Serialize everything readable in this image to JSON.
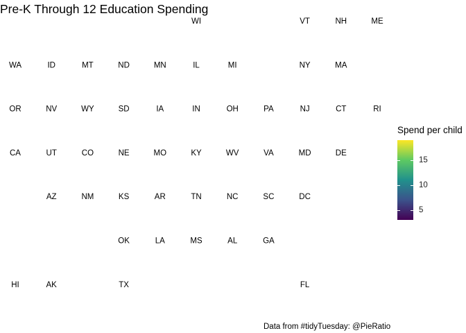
{
  "chart_data": {
    "type": "tile-map",
    "title": "Pre-K Through 12 Education Spending",
    "caption": "Data from #tidyTuesday: @PieRatio",
    "legend": {
      "title": "Spend per child",
      "position": "right",
      "palette": "viridis",
      "ticks": [
        "5",
        "10",
        "15"
      ],
      "tick_values": [
        5,
        10,
        15
      ],
      "range": [
        3,
        19
      ]
    },
    "grid": false,
    "tiles": [
      {
        "state": "WI",
        "row": 0,
        "col": 5
      },
      {
        "state": "VT",
        "row": 0,
        "col": 8
      },
      {
        "state": "NH",
        "row": 0,
        "col": 9
      },
      {
        "state": "ME",
        "row": 0,
        "col": 10
      },
      {
        "state": "WA",
        "row": 1,
        "col": 0
      },
      {
        "state": "ID",
        "row": 1,
        "col": 1
      },
      {
        "state": "MT",
        "row": 1,
        "col": 2
      },
      {
        "state": "ND",
        "row": 1,
        "col": 3
      },
      {
        "state": "MN",
        "row": 1,
        "col": 4
      },
      {
        "state": "IL",
        "row": 1,
        "col": 5
      },
      {
        "state": "MI",
        "row": 1,
        "col": 6
      },
      {
        "state": "NY",
        "row": 1,
        "col": 8
      },
      {
        "state": "MA",
        "row": 1,
        "col": 9
      },
      {
        "state": "OR",
        "row": 2,
        "col": 0
      },
      {
        "state": "NV",
        "row": 2,
        "col": 1
      },
      {
        "state": "WY",
        "row": 2,
        "col": 2
      },
      {
        "state": "SD",
        "row": 2,
        "col": 3
      },
      {
        "state": "IA",
        "row": 2,
        "col": 4
      },
      {
        "state": "IN",
        "row": 2,
        "col": 5
      },
      {
        "state": "OH",
        "row": 2,
        "col": 6
      },
      {
        "state": "PA",
        "row": 2,
        "col": 7
      },
      {
        "state": "NJ",
        "row": 2,
        "col": 8
      },
      {
        "state": "CT",
        "row": 2,
        "col": 9
      },
      {
        "state": "RI",
        "row": 2,
        "col": 10
      },
      {
        "state": "CA",
        "row": 3,
        "col": 0
      },
      {
        "state": "UT",
        "row": 3,
        "col": 1
      },
      {
        "state": "CO",
        "row": 3,
        "col": 2
      },
      {
        "state": "NE",
        "row": 3,
        "col": 3
      },
      {
        "state": "MO",
        "row": 3,
        "col": 4
      },
      {
        "state": "KY",
        "row": 3,
        "col": 5
      },
      {
        "state": "WV",
        "row": 3,
        "col": 6
      },
      {
        "state": "VA",
        "row": 3,
        "col": 7
      },
      {
        "state": "MD",
        "row": 3,
        "col": 8
      },
      {
        "state": "DE",
        "row": 3,
        "col": 9
      },
      {
        "state": "AZ",
        "row": 4,
        "col": 1
      },
      {
        "state": "NM",
        "row": 4,
        "col": 2
      },
      {
        "state": "KS",
        "row": 4,
        "col": 3
      },
      {
        "state": "AR",
        "row": 4,
        "col": 4
      },
      {
        "state": "TN",
        "row": 4,
        "col": 5
      },
      {
        "state": "NC",
        "row": 4,
        "col": 6
      },
      {
        "state": "SC",
        "row": 4,
        "col": 7
      },
      {
        "state": "DC",
        "row": 4,
        "col": 8
      },
      {
        "state": "OK",
        "row": 5,
        "col": 3
      },
      {
        "state": "LA",
        "row": 5,
        "col": 4
      },
      {
        "state": "MS",
        "row": 5,
        "col": 5
      },
      {
        "state": "AL",
        "row": 5,
        "col": 6
      },
      {
        "state": "GA",
        "row": 5,
        "col": 7
      },
      {
        "state": "HI",
        "row": 6,
        "col": 0
      },
      {
        "state": "AK",
        "row": 6,
        "col": 1
      },
      {
        "state": "TX",
        "row": 6,
        "col": 3
      },
      {
        "state": "FL",
        "row": 6,
        "col": 8
      }
    ]
  }
}
